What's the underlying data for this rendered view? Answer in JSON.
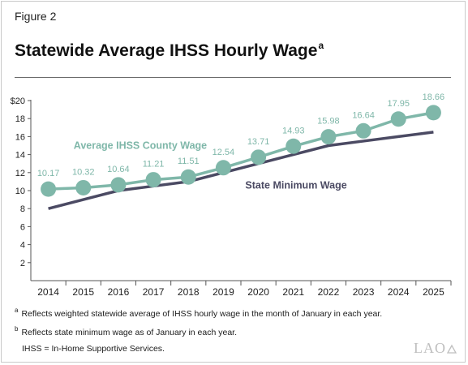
{
  "figure": {
    "label": "Figure 2",
    "title": "Statewide Average IHSS Hourly Wage",
    "title_superscript": "a"
  },
  "chart_data": {
    "type": "line",
    "x": [
      "2014",
      "2015",
      "2016",
      "2017",
      "2018",
      "2019",
      "2020",
      "2021",
      "2022",
      "2023",
      "2024",
      "2025"
    ],
    "ylim": [
      0,
      20
    ],
    "yticks": [
      "",
      "2",
      "4",
      "6",
      "8",
      "10",
      "12",
      "14",
      "16",
      "18",
      "$20"
    ],
    "grid": false,
    "series": [
      {
        "name": "Average IHSS County Wage",
        "color": "#7fb7a9",
        "marker": "circle",
        "values": [
          10.17,
          10.32,
          10.64,
          11.21,
          11.51,
          12.54,
          13.71,
          14.93,
          15.98,
          16.64,
          17.95,
          18.66
        ],
        "data_labels": [
          "10.17",
          "10.32",
          "10.64",
          "11.21",
          "11.51",
          "12.54",
          "13.71",
          "14.93",
          "15.98",
          "16.64",
          "17.95",
          "18.66"
        ]
      },
      {
        "name": "State Minimum Wage",
        "color": "#4b4a63",
        "marker": "none",
        "values": [
          8.0,
          9.0,
          10.0,
          10.5,
          11.0,
          12.0,
          13.0,
          14.0,
          15.0,
          15.5,
          16.0,
          16.5
        ]
      }
    ]
  },
  "footnotes": {
    "a_marker": "a",
    "a_text": "Reflects weighted statewide average of IHSS hourly wage in the month of January in each year.",
    "b_marker": "b",
    "b_text": "Reflects state minimum wage as of January in each year.",
    "abbrev": "IHSS = In-Home Supportive Services."
  },
  "logo": {
    "text": "LAO",
    "icon": "lao-logo-triangle-icon"
  }
}
